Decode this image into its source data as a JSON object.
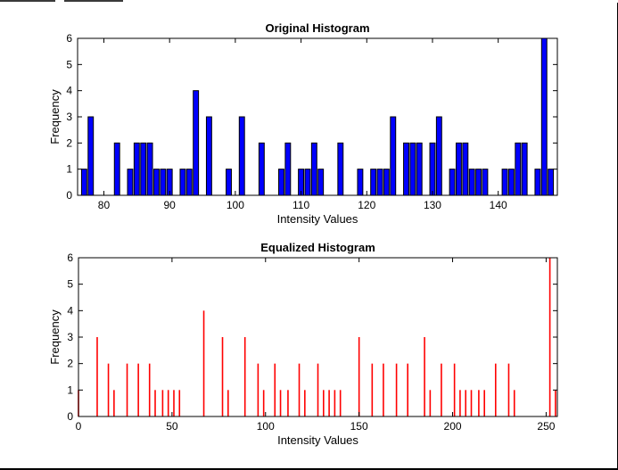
{
  "colors": {
    "background": "#ffffff",
    "axes": "#000000",
    "bar_fill": "#0000ff",
    "bar_edge": "#000000",
    "stem": "#ff0000"
  },
  "chart_data": [
    {
      "type": "bar",
      "title": "Original Histogram",
      "xlabel": "Intensity Values",
      "ylabel": "Frequency",
      "xlim": [
        76,
        149
      ],
      "ylim": [
        0,
        6
      ],
      "xticks": [
        80,
        90,
        100,
        110,
        120,
        130,
        140
      ],
      "yticks": [
        0,
        1,
        2,
        3,
        4,
        5,
        6
      ],
      "grid": false,
      "x": [
        77,
        78,
        82,
        84,
        85,
        86,
        87,
        88,
        89,
        90,
        92,
        93,
        94,
        96,
        99,
        101,
        104,
        107,
        108,
        110,
        111,
        112,
        113,
        116,
        119,
        121,
        122,
        123,
        124,
        126,
        127,
        128,
        130,
        131,
        133,
        134,
        135,
        136,
        137,
        138,
        141,
        142,
        143,
        144,
        146,
        147,
        148
      ],
      "values": [
        1,
        3,
        2,
        1,
        2,
        2,
        2,
        1,
        1,
        1,
        1,
        1,
        4,
        3,
        1,
        3,
        2,
        1,
        2,
        1,
        1,
        2,
        1,
        2,
        1,
        1,
        1,
        1,
        3,
        2,
        2,
        2,
        2,
        3,
        1,
        2,
        2,
        1,
        1,
        1,
        1,
        1,
        2,
        2,
        1,
        6,
        1
      ]
    },
    {
      "type": "bar",
      "title": "Equalized Histogram",
      "xlabel": "Intensity Values",
      "ylabel": "Frequency",
      "xlim": [
        0,
        256
      ],
      "ylim": [
        0,
        6
      ],
      "xticks": [
        0,
        50,
        100,
        150,
        200,
        250
      ],
      "yticks": [
        0,
        1,
        2,
        3,
        4,
        5,
        6
      ],
      "grid": false,
      "x": [
        0,
        10,
        16,
        19,
        26,
        32,
        38,
        41,
        45,
        48,
        51,
        54,
        67,
        77,
        80,
        89,
        96,
        99,
        105,
        108,
        112,
        118,
        121,
        128,
        131,
        134,
        137,
        140,
        150,
        157,
        163,
        170,
        176,
        185,
        188,
        194,
        201,
        204,
        207,
        210,
        214,
        217,
        223,
        230,
        233,
        252,
        255
      ],
      "values": [
        1,
        3,
        2,
        1,
        2,
        2,
        2,
        1,
        1,
        1,
        1,
        1,
        4,
        3,
        1,
        3,
        2,
        1,
        2,
        1,
        1,
        2,
        1,
        2,
        1,
        1,
        1,
        1,
        3,
        2,
        2,
        2,
        2,
        3,
        1,
        2,
        2,
        1,
        1,
        1,
        1,
        1,
        2,
        2,
        1,
        6,
        1
      ]
    }
  ]
}
